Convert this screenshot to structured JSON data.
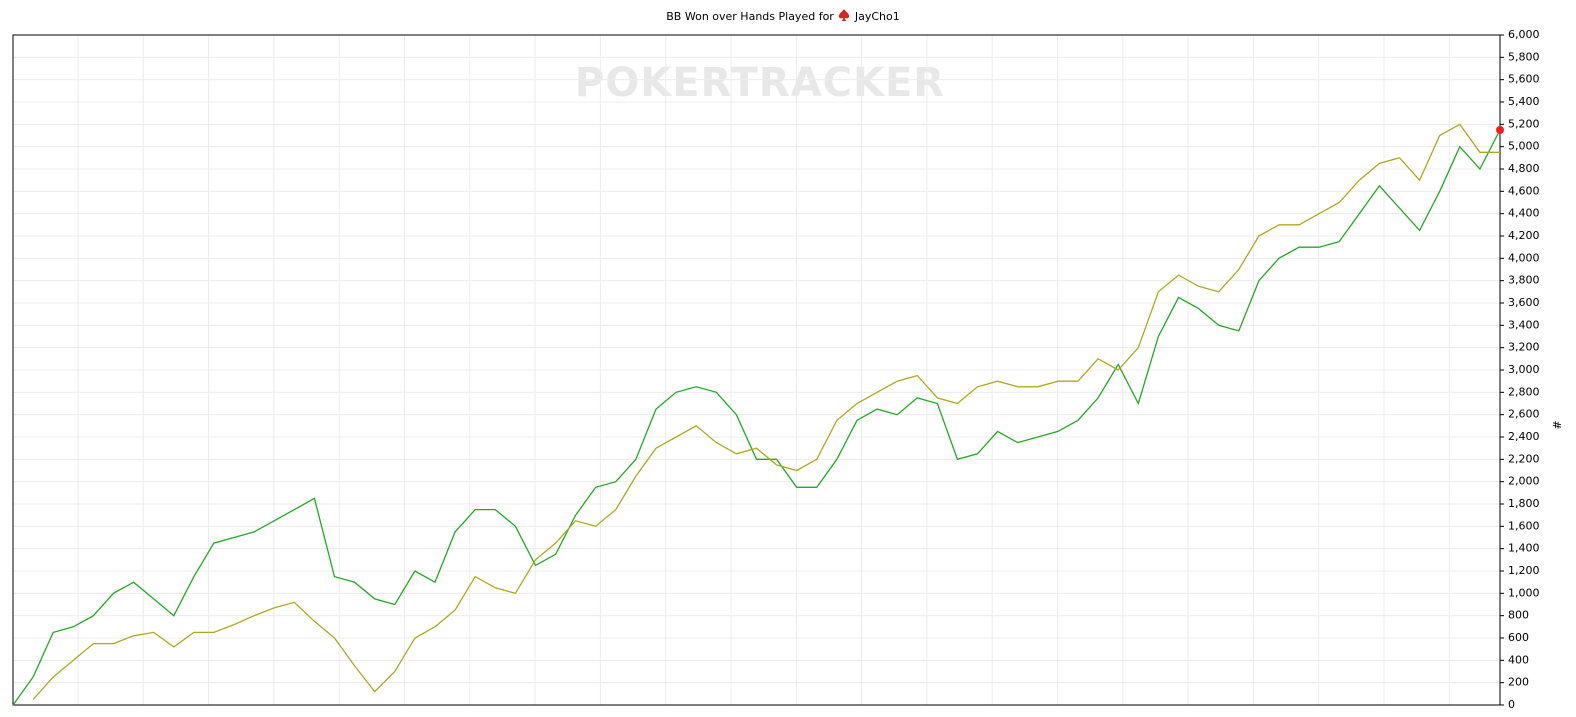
{
  "chart_data": {
    "type": "line",
    "title": "BB Won over Hands Played for",
    "player": "JayCho1",
    "watermark": "POKERTRACKER",
    "y_label": "#",
    "series": [
      {
        "color": "#22aa22",
        "values": [
          0,
          250,
          650,
          700,
          800,
          1000,
          1100,
          950,
          800,
          1150,
          1450,
          1500,
          1550,
          1650,
          1750,
          1850,
          1150,
          1100,
          950,
          900,
          1200,
          1100,
          1550,
          1750,
          1750,
          1600,
          1250,
          1350,
          1700,
          1950,
          2000,
          2200,
          2650,
          2800,
          2850,
          2800,
          2600,
          2200,
          2200,
          1950,
          1950,
          2200,
          2550,
          2650,
          2600,
          2750,
          2700,
          2200,
          2250,
          2450,
          2350,
          2400,
          2450,
          2550,
          2750,
          3050,
          2700,
          3300,
          3650,
          3550,
          3400,
          3350,
          3800,
          4000,
          4100,
          4100,
          4150,
          4400,
          4650,
          4450,
          4250,
          4600,
          5000,
          4800,
          5150
        ]
      },
      {
        "color": "#b0a820",
        "values": [
          null,
          50,
          250,
          400,
          550,
          550,
          620,
          650,
          520,
          650,
          650,
          720,
          800,
          870,
          920,
          750,
          600,
          350,
          120,
          300,
          600,
          700,
          850,
          1150,
          1050,
          1000,
          1300,
          1450,
          1650,
          1600,
          1750,
          2050,
          2300,
          2400,
          2500,
          2350,
          2250,
          2300,
          2150,
          2100,
          2200,
          2550,
          2700,
          2800,
          2900,
          2950,
          2750,
          2700,
          2850,
          2900,
          2850,
          2850,
          2900,
          2900,
          3100,
          3000,
          3200,
          3700,
          3850,
          3750,
          3700,
          3900,
          4200,
          4300,
          4300,
          4400,
          4500,
          4700,
          4850,
          4900,
          4700,
          5100,
          5200,
          4950,
          4950
        ]
      }
    ],
    "end_marker_color": "#ff1a1a",
    "ylim": [
      0,
      6000
    ],
    "yticks": [
      0,
      {
        "value": 200,
        "label": "200"
      },
      {
        "value": 400,
        "label": "400"
      },
      {
        "value": 600,
        "label": "600"
      },
      {
        "value": 800,
        "label": "800"
      },
      {
        "value": 1000,
        "label": "1,000"
      },
      {
        "value": 1200,
        "label": "1,200"
      },
      {
        "value": 1400,
        "label": "1,400"
      },
      {
        "value": 1600,
        "label": "1,600"
      },
      {
        "value": 1800,
        "label": "1,800"
      },
      {
        "value": 2000,
        "label": "2,000"
      },
      {
        "value": 2200,
        "label": "2,200"
      },
      {
        "value": 2400,
        "label": "2,400"
      },
      {
        "value": 2600,
        "label": "2,600"
      },
      {
        "value": 2800,
        "label": "2,800"
      },
      {
        "value": 3000,
        "label": "3,000"
      },
      {
        "value": 3200,
        "label": "3,200"
      },
      {
        "value": 3400,
        "label": "3,400"
      },
      {
        "value": 3600,
        "label": "3,600"
      },
      {
        "value": 3800,
        "label": "3,800"
      },
      {
        "value": 4000,
        "label": "4,000"
      },
      {
        "value": 4200,
        "label": "4,200"
      },
      {
        "value": 4400,
        "label": "4,400"
      },
      {
        "value": 4600,
        "label": "4,600"
      },
      {
        "value": 4800,
        "label": "4,800"
      },
      {
        "value": 5000,
        "label": "5,000"
      },
      {
        "value": 5200,
        "label": "5,200"
      },
      {
        "value": 5400,
        "label": "5,400"
      },
      {
        "value": 5600,
        "label": "5,600"
      },
      {
        "value": 5800,
        "label": "5,800"
      },
      {
        "value": 6000,
        "label": "6,000"
      }
    ],
    "grid": true
  }
}
